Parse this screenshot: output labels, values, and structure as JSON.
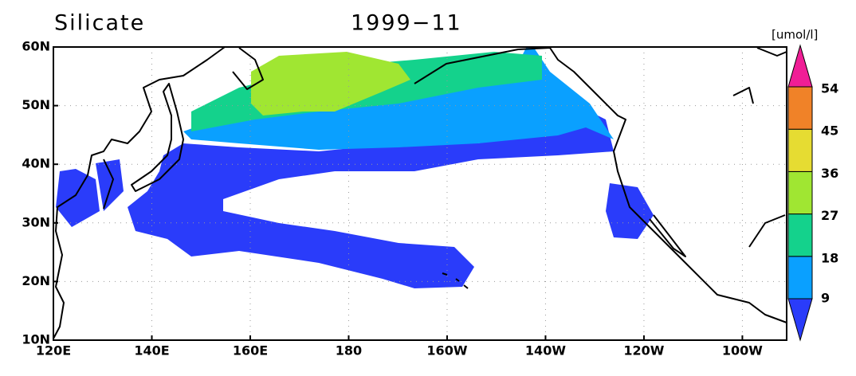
{
  "title": "Silicate",
  "date": "1999−11",
  "unit": "[umol/l]",
  "extent": {
    "lon": [
      120,
      269
    ],
    "lat": [
      10,
      60
    ]
  },
  "lon_ticks": [
    {
      "value": 120,
      "label": "120E"
    },
    {
      "value": 140,
      "label": "140E"
    },
    {
      "value": 160,
      "label": "160E"
    },
    {
      "value": 180,
      "label": "180"
    },
    {
      "value": 200,
      "label": "160W"
    },
    {
      "value": 220,
      "label": "140W"
    },
    {
      "value": 240,
      "label": "120W"
    },
    {
      "value": 260,
      "label": "100W"
    }
  ],
  "lat_ticks": [
    {
      "value": 10,
      "label": "10N"
    },
    {
      "value": 20,
      "label": "20N"
    },
    {
      "value": 30,
      "label": "30N"
    },
    {
      "value": 40,
      "label": "40N"
    },
    {
      "value": 50,
      "label": "50N"
    },
    {
      "value": 60,
      "label": "60N"
    }
  ],
  "colorbar": {
    "levels": [
      9,
      18,
      27,
      36,
      45,
      54
    ],
    "colors": [
      "#2a3cfa",
      "#0aa0ff",
      "#14d28c",
      "#a0e632",
      "#e6dc32",
      "#f08228",
      "#f01e96"
    ]
  }
}
